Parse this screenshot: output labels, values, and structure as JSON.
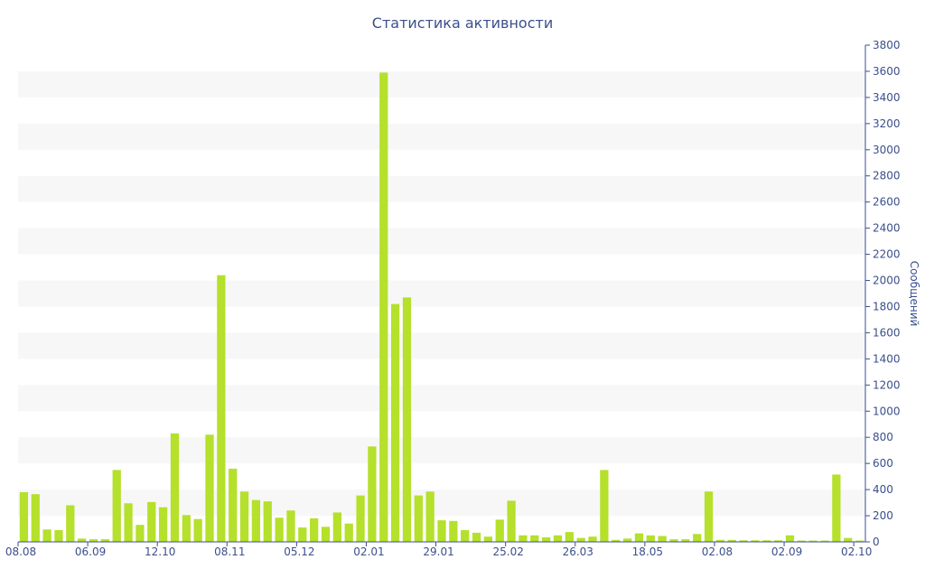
{
  "chart_data": {
    "type": "bar",
    "title": "Статистика активности",
    "ylabel": "Сообщений",
    "xlabel": "",
    "ylim": [
      0,
      3800
    ],
    "y_ticks": [
      0,
      200,
      400,
      600,
      800,
      1000,
      1200,
      1400,
      1600,
      1800,
      2000,
      2200,
      2400,
      2600,
      2800,
      3000,
      3200,
      3400,
      3600,
      3800
    ],
    "y_axis_position": "right",
    "grid": "alternating horizontal bands",
    "x_tick_labels": [
      {
        "label": "08.08",
        "index": 0
      },
      {
        "label": "06.09",
        "index": 6
      },
      {
        "label": "12.10",
        "index": 12
      },
      {
        "label": "08.11",
        "index": 18
      },
      {
        "label": "05.12",
        "index": 24
      },
      {
        "label": "02.01",
        "index": 30
      },
      {
        "label": "29.01",
        "index": 36
      },
      {
        "label": "25.02",
        "index": 42
      },
      {
        "label": "26.03",
        "index": 48
      },
      {
        "label": "18.05",
        "index": 54
      },
      {
        "label": "02.08",
        "index": 60
      },
      {
        "label": "02.09",
        "index": 66
      },
      {
        "label": "02.10",
        "index": 72
      }
    ],
    "values": [
      380,
      365,
      95,
      90,
      280,
      25,
      20,
      20,
      550,
      295,
      130,
      305,
      265,
      830,
      205,
      175,
      820,
      2040,
      560,
      385,
      320,
      310,
      185,
      240,
      110,
      180,
      115,
      225,
      140,
      355,
      730,
      3590,
      1820,
      1870,
      355,
      385,
      165,
      160,
      90,
      70,
      40,
      170,
      315,
      50,
      50,
      35,
      50,
      75,
      30,
      40,
      550,
      15,
      25,
      65,
      50,
      45,
      20,
      20,
      60,
      385,
      15,
      15,
      12,
      12,
      12,
      12,
      50,
      10,
      10,
      10,
      515,
      30,
      10
    ],
    "color": "#b5e02b",
    "axis_color": "#3b4f8c"
  }
}
